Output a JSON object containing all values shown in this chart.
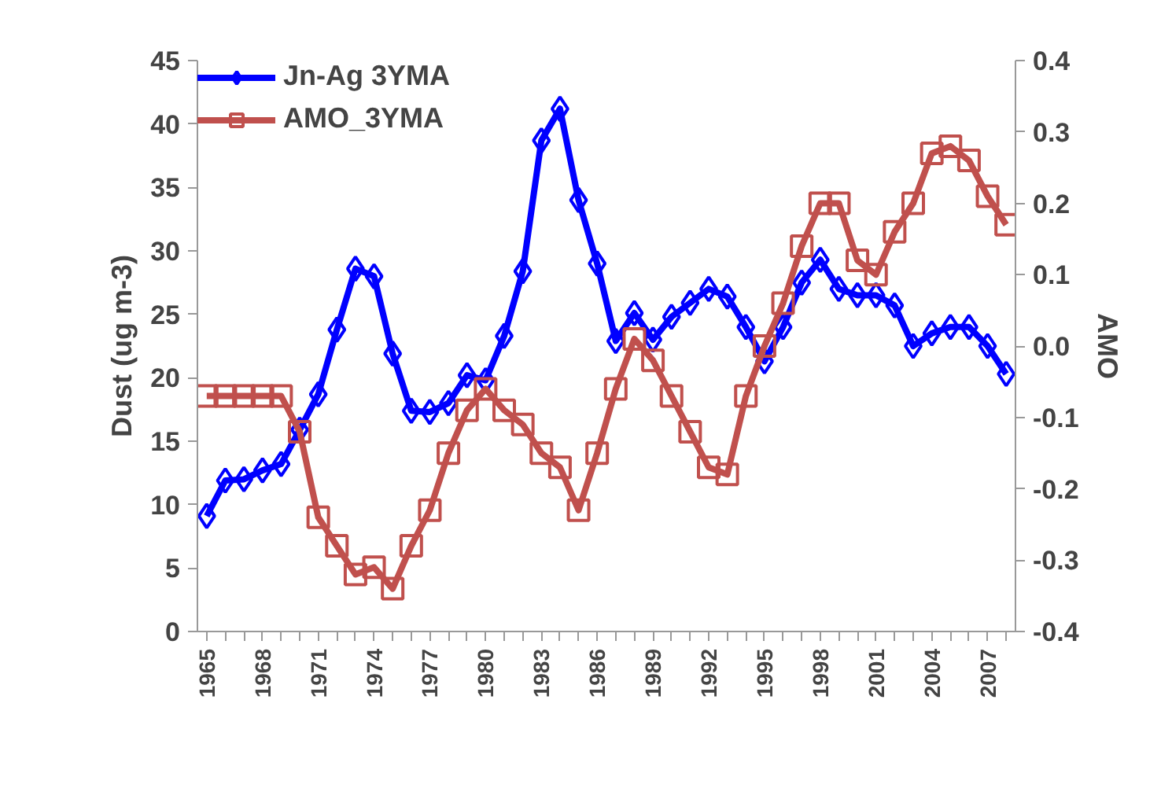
{
  "chart_data": {
    "type": "line",
    "ylabel": "Dust (ug m-3)",
    "y2label": "AMO",
    "categories": [
      "1965",
      null,
      null,
      "1968",
      null,
      null,
      "1971",
      null,
      null,
      "1974",
      null,
      null,
      "1977",
      null,
      null,
      "1980",
      null,
      null,
      "1983",
      null,
      null,
      "1986",
      null,
      null,
      "1989",
      null,
      null,
      "1992",
      null,
      null,
      "1995",
      null,
      null,
      "1998",
      null,
      null,
      "2001",
      null,
      null,
      "2004",
      null,
      null,
      "2007",
      null
    ],
    "series": [
      {
        "name": "Jn-Ag 3YMA",
        "color": "#0000ff",
        "marker": "diamond",
        "values": [
          9.1,
          11.9,
          12,
          12.7,
          13.2,
          15.9,
          18.7,
          23.8,
          28.6,
          28,
          21.9,
          17.4,
          17.3,
          18,
          20.2,
          19.8,
          23.3,
          28.4,
          38.7,
          41.2,
          34,
          29,
          22.9,
          25.1,
          23,
          24.8,
          25.9,
          27,
          26.4,
          24,
          21.3,
          24,
          27.5,
          29.3,
          27,
          26.5,
          26.5,
          25.7,
          22.5,
          23.5,
          24,
          24,
          22.5,
          20.3
        ]
      },
      {
        "name": "AMO_3YMA",
        "color": "#c0504d",
        "marker": "square",
        "axis": "y2",
        "values": [
          -0.07,
          -0.07,
          -0.07,
          -0.07,
          -0.07,
          -0.12,
          -0.24,
          -0.28,
          -0.32,
          -0.31,
          -0.34,
          -0.28,
          -0.23,
          -0.15,
          -0.09,
          -0.06,
          -0.09,
          -0.11,
          -0.15,
          -0.17,
          -0.23,
          -0.15,
          -0.06,
          0.01,
          -0.02,
          -0.07,
          -0.12,
          -0.17,
          -0.18,
          -0.07,
          0.0,
          0.06,
          0.14,
          0.2,
          0.2,
          0.12,
          0.1,
          0.16,
          0.2,
          0.27,
          0.28,
          0.26,
          0.21,
          0.17
        ]
      }
    ],
    "ylim": [
      0,
      45
    ],
    "yticks": [
      0,
      5,
      10,
      15,
      20,
      25,
      30,
      35,
      40,
      45
    ],
    "y2lim": [
      -0.4,
      0.4
    ],
    "y2ticks": [
      {
        "value": -0.4,
        "label": "-0.4"
      },
      {
        "value": -0.3,
        "label": "-0.3"
      },
      {
        "value": -0.2,
        "label": "-0.2"
      },
      {
        "value": -0.1,
        "label": "-0.1"
      },
      {
        "value": 0,
        "label": "0.0"
      },
      {
        "value": 0.1,
        "label": "0.1"
      },
      {
        "value": 0.2,
        "label": "0.2"
      },
      {
        "value": 0.3,
        "label": "0.3"
      },
      {
        "value": 0.4,
        "label": "0.4"
      }
    ],
    "grid": false,
    "legend": "top left"
  }
}
